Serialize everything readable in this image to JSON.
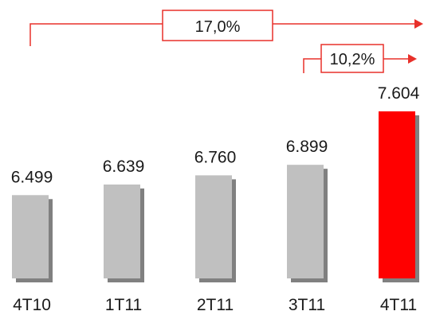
{
  "chart_data": {
    "type": "bar",
    "title": "",
    "xlabel": "",
    "ylabel": "",
    "categories": [
      "4T10",
      "1T11",
      "2T11",
      "3T11",
      "4T11"
    ],
    "values": [
      6499,
      6639,
      6760,
      6899,
      7604
    ],
    "value_labels": [
      "6.499",
      "6.639",
      "6.760",
      "6.899",
      "7.604"
    ],
    "ylim": [
      5400,
      7604
    ],
    "grid": false,
    "legend": "none",
    "colors": {
      "bar": "#c0c0c0",
      "bar_highlight": "#ff0000",
      "shadow": "#808080",
      "annotation": "#e8302a"
    },
    "highlight_index": 4,
    "annotations": [
      {
        "label": "17,0%",
        "from": "4T10",
        "to": "4T11"
      },
      {
        "label": "10,2%",
        "from": "3T11",
        "to": "4T11"
      }
    ]
  }
}
